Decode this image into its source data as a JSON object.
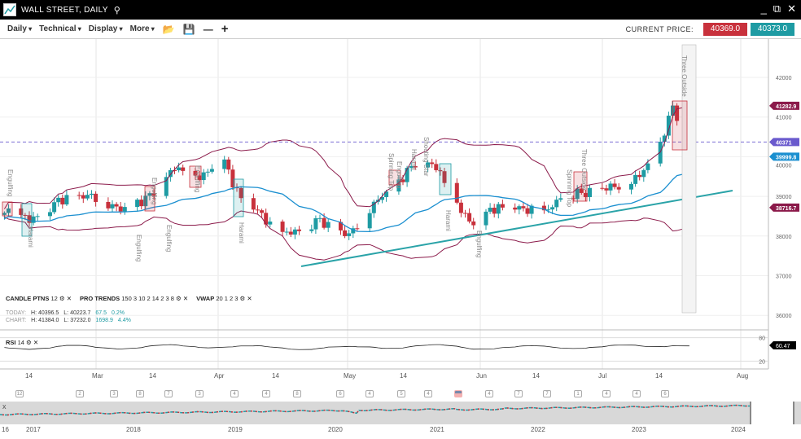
{
  "window": {
    "title": "WALL STREET, DAILY",
    "icons": [
      "chart-logo-icon",
      "search-icon",
      "minimize-icon",
      "popout-icon",
      "close-icon"
    ]
  },
  "toolbar": {
    "menus": [
      "Daily",
      "Technical",
      "Display",
      "More"
    ],
    "icons": [
      "folder-open-icon",
      "save-icon",
      "zoom-out-icon",
      "zoom-in-icon"
    ],
    "current_price_label": "CURRENT PRICE:",
    "bid": "40369.0",
    "ask": "40373.0"
  },
  "colors": {
    "bid": "#c8313c",
    "ask": "#1e9ba3",
    "up": "#1e9ba3",
    "down": "#c8313c",
    "bollinger": "#8b1a4a",
    "vwap": "#1a8fd0",
    "trend": "#2aa3a8",
    "price_line": "#6a5acd"
  },
  "indicators": {
    "candle": {
      "name": "CANDLE PTNS",
      "params": "12"
    },
    "pro": {
      "name": "PRO TRENDS",
      "params": "150 3 10 2 14 2 3 8"
    },
    "vwap": {
      "name": "VWAP",
      "params": "20 1 2 3"
    },
    "rsi": {
      "name": "RSI",
      "params": "14",
      "value": "60.47",
      "levels": [
        "80",
        "20"
      ]
    }
  },
  "stats": {
    "today": {
      "label": "TODAY:",
      "h": "H: 40396.5",
      "l": "L: 40223.7",
      "chg": "67.5",
      "pct": "0.2%"
    },
    "chart": {
      "label": "CHART:",
      "h": "H: 41384.0",
      "l": "L: 37232.0",
      "chg": "1698.9",
      "pct": "4.4%"
    }
  },
  "y_axis": {
    "ticks": [
      "42000",
      "41000",
      "40000",
      "39000",
      "38000",
      "37000",
      "36000"
    ],
    "markers": {
      "upper_band": "41282.9",
      "price": "40371",
      "vwap": "39999.8",
      "lower_band": "38716.7"
    }
  },
  "x_axis": {
    "ticks": [
      "14",
      "Mar",
      "14",
      "Apr",
      "14",
      "May",
      "14",
      "Jun",
      "14",
      "Jul",
      "14",
      "Aug"
    ]
  },
  "patterns": [
    "Engulfing",
    "Harami",
    "Engulfing",
    "Engulfing",
    "Engulfing",
    "Engulfing",
    "Harami",
    "Spinning Top",
    "Engulfing",
    "Harami",
    "Shooting Star",
    "Harami",
    "Engulfing",
    "Spinning Top",
    "Three Outside",
    "Three Outside"
  ],
  "events": [
    "12",
    "2",
    "3",
    "8",
    "7",
    "3",
    "4",
    "4",
    "8",
    "6",
    "4",
    "5",
    "4",
    "",
    "4",
    "7",
    "7",
    "1",
    "4",
    "4",
    "6"
  ],
  "navigator": {
    "years": [
      "16",
      "2017",
      "2018",
      "2019",
      "2020",
      "2021",
      "2022",
      "2023",
      "2024"
    ],
    "close_label": "x"
  },
  "chart_data": {
    "type": "candlestick",
    "price_keypoints": [
      [
        "2024-02-08",
        38700
      ],
      [
        "2024-02-14",
        38400
      ],
      [
        "2024-02-23",
        39000
      ],
      [
        "2024-03-01",
        39000
      ],
      [
        "2024-03-07",
        38650
      ],
      [
        "2024-03-14",
        39000
      ],
      [
        "2024-03-20",
        39750
      ],
      [
        "2024-03-24",
        39400
      ],
      [
        "2024-04-01",
        39850
      ],
      [
        "2024-04-05",
        38900
      ],
      [
        "2024-04-10",
        38550
      ],
      [
        "2024-04-14",
        38000
      ],
      [
        "2024-04-20",
        38200
      ],
      [
        "2024-04-24",
        38400
      ],
      [
        "2024-05-01",
        38000
      ],
      [
        "2024-05-04",
        38500
      ],
      [
        "2024-05-10",
        39100
      ],
      [
        "2024-05-14",
        39500
      ],
      [
        "2024-05-18",
        39950
      ],
      [
        "2024-05-22",
        39750
      ],
      [
        "2024-05-25",
        39100
      ],
      [
        "2024-06-01",
        38100
      ],
      [
        "2024-06-04",
        38700
      ],
      [
        "2024-06-12",
        38700
      ],
      [
        "2024-06-17",
        38550
      ],
      [
        "2024-06-21",
        39000
      ],
      [
        "2024-06-27",
        39100
      ],
      [
        "2024-07-04",
        39250
      ],
      [
        "2024-07-10",
        39500
      ],
      [
        "2024-07-14",
        40150
      ],
      [
        "2024-07-17",
        40900
      ],
      [
        "2024-07-18",
        41300
      ],
      [
        "2024-07-21",
        40370
      ],
      [
        "2024-07-22",
        40371
      ]
    ],
    "ylim": [
      35600,
      42800
    ]
  }
}
